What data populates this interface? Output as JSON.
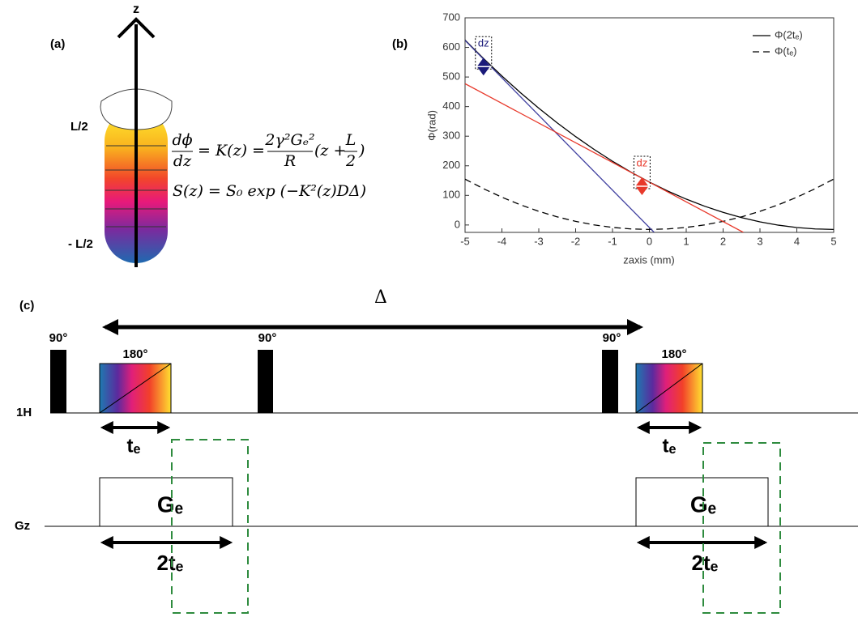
{
  "panel_a": {
    "label": "(a)",
    "axis": "z",
    "top": "L/2",
    "bottom": "- L/2",
    "eq1": {
      "lhs_num": "dϕ",
      "lhs_den": "dz",
      "mid": "= K(z) =",
      "frac_num": "2γ²Gₑ²",
      "frac_den": "R",
      "paren_open": "(z +",
      "l_num": "L",
      "l_den": "2",
      "paren_close": ")"
    },
    "eq2": "S(z) = S₀ exp (−K²(z)DΔ)"
  },
  "chart_data": {
    "type": "line",
    "label": "(b)",
    "xlabel": "zaxis (mm)",
    "ylabel": "Φ(rad)",
    "xlim": [
      -5,
      5
    ],
    "ylim": [
      -25,
      700
    ],
    "xticks": [
      -5,
      -4,
      -3,
      -2,
      -1,
      0,
      1,
      2,
      3,
      4,
      5
    ],
    "yticks": [
      0,
      100,
      200,
      300,
      400,
      500,
      600,
      700
    ],
    "legend": "upper right",
    "series": [
      {
        "name": "Φ(2tₑ)",
        "color": "#000000",
        "style": "solid",
        "x": [
          -5,
          -4.5,
          -4,
          -3.5,
          -3,
          -2.5,
          -2,
          -1.5,
          -1,
          -0.5,
          0,
          0.5,
          1,
          1.5,
          2,
          2.5,
          3,
          3.5,
          4,
          4.5,
          5
        ],
        "values": [
          625,
          562.6,
          503.4,
          447.4,
          394.6,
          345,
          298.6,
          255.4,
          215.4,
          178.6,
          145,
          114.6,
          87.4,
          63.4,
          42.6,
          25,
          10.6,
          -0.6,
          -8.6,
          -13.4,
          -15
        ]
      },
      {
        "name": "Φ(tₑ)",
        "color": "#000000",
        "style": "dashed",
        "x": [
          -5,
          -4.5,
          -4,
          -3.5,
          -3,
          -2.5,
          -2,
          -1.5,
          -1,
          -0.5,
          0,
          0.5,
          1,
          1.5,
          2,
          2.5,
          3,
          3.5,
          4,
          4.5,
          5
        ],
        "values": [
          155,
          122.7,
          93.8,
          68.3,
          46.2,
          27.5,
          12.2,
          0.3,
          -8.2,
          -13.3,
          -15,
          -13.3,
          -8.2,
          0.3,
          12.2,
          27.5,
          46.2,
          68.3,
          93.8,
          122.7,
          155
        ]
      },
      {
        "color": "#4040a0",
        "style": "solid",
        "x": [
          -5,
          0.13
        ],
        "values": [
          623.4,
          -25
        ]
      },
      {
        "color": "#e8392b",
        "style": "solid",
        "x": [
          -5,
          2.55
        ],
        "values": [
          477.5,
          -25
        ]
      }
    ],
    "markers": [
      {
        "x": -4.5,
        "y": 535,
        "label": "dz",
        "color": "#1a1a7a"
      },
      {
        "x": -0.2,
        "y": 131,
        "label": "dz",
        "color": "#e8392b"
      }
    ]
  },
  "panel_c": {
    "label": "(c)",
    "delta": "Δ",
    "pulse_90": [
      "90°",
      "90°",
      "90°"
    ],
    "pulse_180": [
      "180°",
      "180°"
    ],
    "rf_axis": "1H",
    "grad_axis": "Gz",
    "te": [
      "tₑ",
      "tₑ"
    ],
    "ge": [
      "Gₑ",
      "Gₑ"
    ],
    "two_te": [
      "2tₑ",
      "2tₑ"
    ]
  }
}
